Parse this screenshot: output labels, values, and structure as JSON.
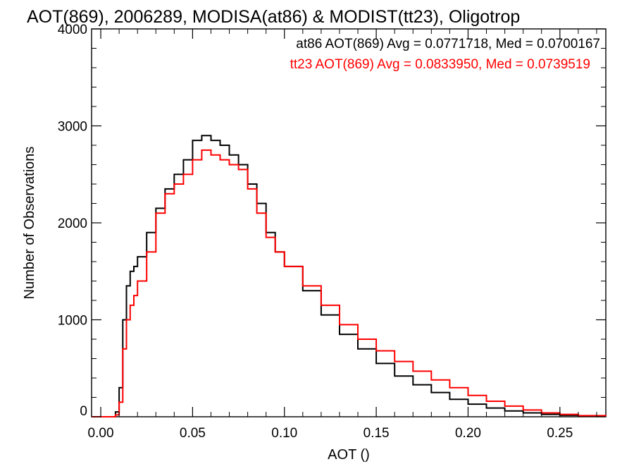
{
  "chart_data": {
    "type": "line",
    "title": "AOT(869), 2006289, MODISA(at86) & MODIST(tt23), Oligotrop",
    "xlabel": "AOT ()",
    "ylabel": "Number of Observations",
    "xlim": [
      -0.005,
      0.275
    ],
    "ylim": [
      0,
      4000
    ],
    "x_ticks": [
      0.0,
      0.05,
      0.1,
      0.15,
      0.2,
      0.25
    ],
    "x_tick_labels": [
      "0.00",
      "0.05",
      "0.10",
      "0.15",
      "0.20",
      "0.25"
    ],
    "y_ticks": [
      0,
      1000,
      2000,
      3000,
      4000
    ],
    "y_tick_labels": [
      "0",
      "1000",
      "2000",
      "3000",
      "4000"
    ],
    "legend": [
      {
        "text": "at86 AOT(869) Avg = 0.0771718, Med = 0.0700167",
        "color": "#000000"
      },
      {
        "text": "tt23 AOT(869) Avg = 0.0833950, Med = 0.0739519",
        "color": "#ff0000"
      }
    ],
    "series": [
      {
        "color": "#000000",
        "x": [
          -0.005,
          0.005,
          0.008,
          0.01,
          0.012,
          0.014,
          0.016,
          0.018,
          0.02,
          0.025,
          0.03,
          0.035,
          0.04,
          0.045,
          0.05,
          0.055,
          0.06,
          0.065,
          0.07,
          0.075,
          0.08,
          0.085,
          0.09,
          0.095,
          0.1,
          0.11,
          0.12,
          0.13,
          0.14,
          0.15,
          0.16,
          0.17,
          0.18,
          0.19,
          0.2,
          0.21,
          0.22,
          0.23,
          0.24,
          0.25,
          0.26,
          0.275
        ],
        "y": [
          0,
          0,
          50,
          300,
          1000,
          1350,
          1500,
          1550,
          1650,
          1900,
          2150,
          2350,
          2500,
          2650,
          2850,
          2900,
          2850,
          2800,
          2700,
          2600,
          2400,
          2200,
          1900,
          1700,
          1550,
          1300,
          1050,
          850,
          700,
          550,
          420,
          330,
          250,
          180,
          130,
          90,
          60,
          40,
          25,
          15,
          8,
          5
        ]
      },
      {
        "color": "#ff0000",
        "x": [
          -0.005,
          0.005,
          0.008,
          0.01,
          0.012,
          0.014,
          0.016,
          0.018,
          0.02,
          0.025,
          0.03,
          0.035,
          0.04,
          0.045,
          0.05,
          0.055,
          0.06,
          0.065,
          0.07,
          0.075,
          0.08,
          0.085,
          0.09,
          0.095,
          0.1,
          0.11,
          0.12,
          0.13,
          0.14,
          0.15,
          0.16,
          0.17,
          0.18,
          0.19,
          0.2,
          0.21,
          0.22,
          0.23,
          0.24,
          0.25,
          0.26,
          0.275
        ],
        "y": [
          0,
          0,
          20,
          150,
          700,
          1000,
          1150,
          1250,
          1400,
          1700,
          2100,
          2300,
          2400,
          2500,
          2650,
          2750,
          2700,
          2650,
          2600,
          2550,
          2350,
          2100,
          1850,
          1700,
          1550,
          1350,
          1150,
          950,
          800,
          680,
          570,
          470,
          380,
          300,
          220,
          160,
          110,
          70,
          40,
          25,
          12,
          5
        ]
      }
    ]
  }
}
